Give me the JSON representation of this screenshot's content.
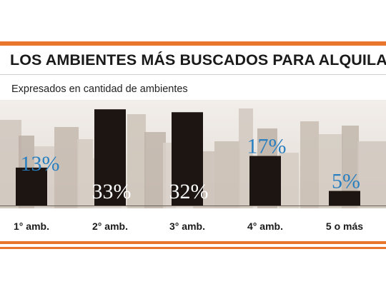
{
  "header": {
    "title": "LOS AMBIENTES MÁS BUSCADOS PARA ALQUILAR",
    "subtitle": "Expresados en cantidad de ambientes"
  },
  "colors": {
    "accent": "#e8762d",
    "bar": "#1c1512",
    "label": "#2a7fc0"
  },
  "chart_data": {
    "type": "bar",
    "title": "LOS AMBIENTES MÁS BUSCADOS PARA ALQUILAR",
    "subtitle": "Expresados en cantidad de ambientes",
    "categories": [
      "1° amb.",
      "2° amb.",
      "3° amb.",
      "4° amb.",
      "5 o más"
    ],
    "values": [
      13,
      33,
      32,
      17,
      5
    ],
    "value_labels": [
      "13%",
      "33%",
      "32%",
      "17%",
      "5%"
    ],
    "xlabel": "",
    "ylabel": "",
    "ylim": [
      0,
      35
    ],
    "grid": false,
    "legend": "none"
  }
}
